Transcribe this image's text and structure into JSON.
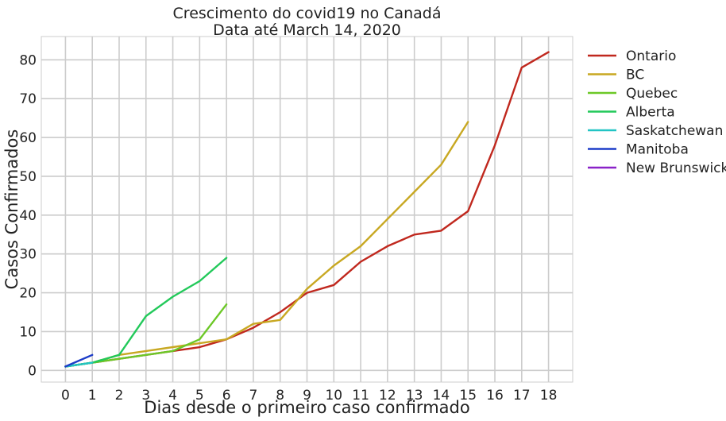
{
  "chart_data": {
    "type": "line",
    "title": [
      "Crescimento do covid19 no Canadá",
      "Data até March 14, 2020"
    ],
    "xlabel": "Dias desde o primeiro caso confirmado",
    "ylabel": "Casos Confirmados",
    "xlim": [
      -0.9,
      18.9
    ],
    "ylim": [
      -3,
      86
    ],
    "xticks": [
      0,
      1,
      2,
      3,
      4,
      5,
      6,
      7,
      8,
      9,
      10,
      11,
      12,
      13,
      14,
      15,
      16,
      17,
      18
    ],
    "yticks": [
      0,
      10,
      20,
      30,
      40,
      50,
      60,
      70,
      80
    ],
    "grid": true,
    "legend_position": "outside-right",
    "series": [
      {
        "name": "Ontario",
        "color": "#c0281e",
        "x": [
          0,
          1,
          2,
          3,
          4,
          5,
          6,
          7,
          8,
          9,
          10,
          11,
          12,
          13,
          14,
          15,
          16,
          17,
          18
        ],
        "y": [
          1,
          2,
          3,
          4,
          5,
          6,
          8,
          11,
          15,
          20,
          22,
          28,
          32,
          35,
          36,
          41,
          58,
          78,
          82
        ]
      },
      {
        "name": "BC",
        "color": "#c8a822",
        "x": [
          0,
          1,
          2,
          3,
          4,
          5,
          6,
          7,
          8,
          9,
          10,
          11,
          12,
          13,
          14,
          15
        ],
        "y": [
          1,
          2,
          4,
          5,
          6,
          7,
          8,
          12,
          13,
          21,
          27,
          32,
          39,
          46,
          53,
          64
        ]
      },
      {
        "name": "Quebec",
        "color": "#6cc827",
        "x": [
          0,
          1,
          2,
          3,
          4,
          5,
          6
        ],
        "y": [
          1,
          2,
          3,
          4,
          5,
          8,
          17
        ]
      },
      {
        "name": "Alberta",
        "color": "#22c95a",
        "x": [
          0,
          1,
          2,
          3,
          4,
          5,
          6
        ],
        "y": [
          1,
          2,
          4,
          14,
          19,
          23,
          29
        ]
      },
      {
        "name": "Saskatchewan",
        "color": "#22c4c4",
        "x": [
          0,
          1
        ],
        "y": [
          1,
          2
        ]
      },
      {
        "name": "Manitoba",
        "color": "#1c3cc8",
        "x": [
          0,
          1
        ],
        "y": [
          1,
          4
        ]
      },
      {
        "name": "New Brunswick",
        "color": "#8a22c8",
        "x": [],
        "y": []
      }
    ]
  }
}
